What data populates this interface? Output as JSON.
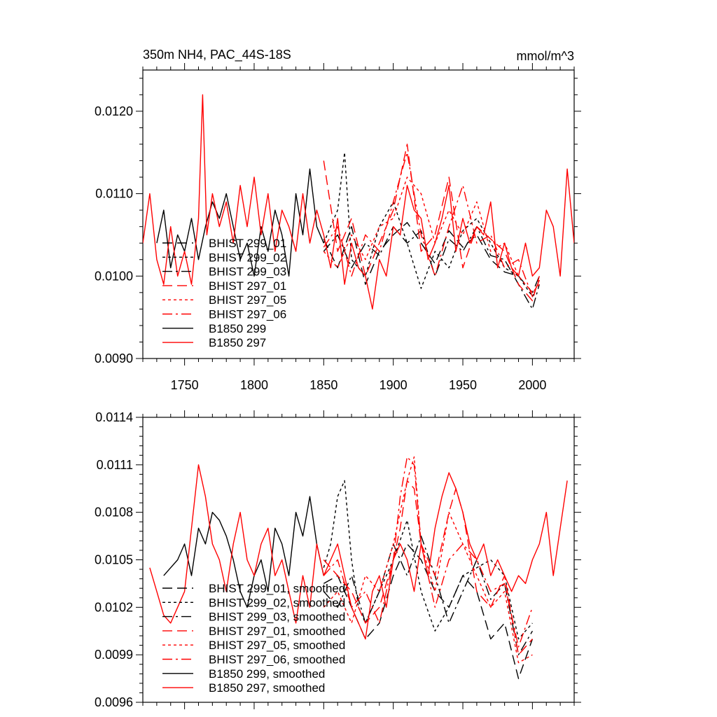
{
  "chart_data": [
    {
      "type": "line",
      "title": "350m NH4, PAC_44S-18S",
      "units": "mmol/m^3",
      "xlim": [
        1720,
        2030
      ],
      "ylim": [
        0.009,
        0.0125
      ],
      "xticks": [
        1750,
        1800,
        1850,
        1900,
        1950,
        2000
      ],
      "xtick_labels": [
        "1750",
        "1800",
        "1850",
        "1900",
        "1950",
        "2000"
      ],
      "yticks": [
        0.009,
        0.01,
        0.011,
        0.012
      ],
      "ytick_labels": [
        "0.0090",
        "0.0100",
        "0.0110",
        "0.0120"
      ],
      "legend_position": "lower-left",
      "series": [
        {
          "name": "BHIST 299_01",
          "color": "#000000",
          "dash": "14,7",
          "x": [
            1850,
            1860,
            1870,
            1880,
            1890,
            1900,
            1910,
            1920,
            1930,
            1940,
            1950,
            1960,
            1970,
            1980,
            1990,
            2000,
            2005
          ],
          "y": [
            0.01045,
            0.0101,
            0.0106,
            0.0099,
            0.0103,
            0.0105,
            0.01065,
            0.0104,
            0.01015,
            0.01055,
            0.01035,
            0.0105,
            0.0102,
            0.01005,
            0.01,
            0.0098,
            0.01
          ]
        },
        {
          "name": "BHIST 299_02",
          "color": "#000000",
          "dash": "4,4",
          "x": [
            1850,
            1860,
            1865,
            1870,
            1880,
            1890,
            1900,
            1910,
            1920,
            1930,
            1940,
            1950,
            1960,
            1970,
            1980,
            1990,
            2000,
            2005
          ],
          "y": [
            0.0104,
            0.0108,
            0.0115,
            0.0102,
            0.01,
            0.0106,
            0.0109,
            0.0104,
            0.00985,
            0.0103,
            0.0101,
            0.01055,
            0.0107,
            0.0104,
            0.0101,
            0.01,
            0.00975,
            0.00995
          ]
        },
        {
          "name": "BHIST 299_03",
          "color": "#000000",
          "dash": "14,5,3,5",
          "x": [
            1850,
            1860,
            1870,
            1880,
            1890,
            1900,
            1910,
            1920,
            1930,
            1940,
            1950,
            1960,
            1970,
            1980,
            1990,
            2000,
            2005
          ],
          "y": [
            0.0103,
            0.0105,
            0.0101,
            0.0104,
            0.01025,
            0.0106,
            0.0104,
            0.01055,
            0.01,
            0.01045,
            0.0103,
            0.0106,
            0.01025,
            0.0102,
            0.0099,
            0.0096,
            0.0099
          ]
        },
        {
          "name": "BHIST 297_01",
          "color": "#ff0000",
          "dash": "14,7",
          "x": [
            1850,
            1860,
            1870,
            1880,
            1890,
            1900,
            1910,
            1920,
            1930,
            1940,
            1950,
            1960,
            1970,
            1980,
            1990,
            2000,
            2005
          ],
          "y": [
            0.0114,
            0.0103,
            0.0107,
            0.01,
            0.0104,
            0.0108,
            0.0116,
            0.0103,
            0.0105,
            0.0112,
            0.0101,
            0.0106,
            0.01045,
            0.0103,
            0.0099,
            0.0097,
            0.01
          ]
        },
        {
          "name": "BHIST 297_05",
          "color": "#ff0000",
          "dash": "4,4",
          "x": [
            1850,
            1860,
            1870,
            1880,
            1890,
            1900,
            1910,
            1920,
            1930,
            1940,
            1950,
            1960,
            1970,
            1980,
            1990,
            2000,
            2005
          ],
          "y": [
            0.0103,
            0.0101,
            0.0105,
            0.0102,
            0.0106,
            0.0107,
            0.0112,
            0.011,
            0.0104,
            0.0108,
            0.0105,
            0.0109,
            0.0103,
            0.0104,
            0.01,
            0.0098,
            0.0099
          ]
        },
        {
          "name": "BHIST 297_06",
          "color": "#ff0000",
          "dash": "14,5,3,5",
          "x": [
            1850,
            1860,
            1870,
            1880,
            1890,
            1900,
            1910,
            1920,
            1930,
            1940,
            1950,
            1960,
            1970,
            1980,
            1990,
            2000,
            2005
          ],
          "y": [
            0.01035,
            0.0106,
            0.01,
            0.0105,
            0.0103,
            0.0109,
            0.0115,
            0.0105,
            0.01,
            0.0106,
            0.0111,
            0.0104,
            0.0105,
            0.0101,
            0.0102,
            0.00975,
            0.00995
          ]
        },
        {
          "name": "B1850 299",
          "color": "#000000",
          "dash": "",
          "x": [
            1730,
            1735,
            1740,
            1745,
            1750,
            1755,
            1760,
            1765,
            1770,
            1775,
            1780,
            1785,
            1790,
            1795,
            1800,
            1805,
            1810,
            1815,
            1820,
            1825,
            1830,
            1835,
            1840,
            1845,
            1850
          ],
          "y": [
            0.0104,
            0.0108,
            0.0101,
            0.0105,
            0.0103,
            0.0107,
            0.0102,
            0.0106,
            0.0109,
            0.0107,
            0.011,
            0.0106,
            0.0102,
            0.0104,
            0.01,
            0.0106,
            0.0103,
            0.0108,
            0.0105,
            0.01,
            0.011,
            0.0105,
            0.0113,
            0.0106,
            0.0104
          ]
        },
        {
          "name": "B1850 297",
          "color": "#ff0000",
          "dash": "",
          "x": [
            1720,
            1725,
            1730,
            1735,
            1740,
            1745,
            1750,
            1755,
            1760,
            1763,
            1766,
            1770,
            1775,
            1780,
            1785,
            1790,
            1795,
            1800,
            1805,
            1810,
            1815,
            1820,
            1825,
            1830,
            1835,
            1840,
            1845,
            1850,
            1855,
            1860,
            1865,
            1870,
            1875,
            1880,
            1885,
            1890,
            1895,
            1900,
            1905,
            1910,
            1915,
            1920,
            1925,
            1930,
            1935,
            1940,
            1945,
            1950,
            1955,
            1960,
            1965,
            1970,
            1975,
            1980,
            1985,
            1990,
            1995,
            2000,
            2005,
            2010,
            2015,
            2020,
            2025,
            2030
          ],
          "y": [
            0.0104,
            0.011,
            0.0102,
            0.0099,
            0.0106,
            0.01,
            0.0103,
            0.0099,
            0.0107,
            0.0122,
            0.0105,
            0.011,
            0.0106,
            0.0109,
            0.0104,
            0.0111,
            0.0106,
            0.0112,
            0.0105,
            0.011,
            0.0103,
            0.0108,
            0.0106,
            0.0103,
            0.011,
            0.0104,
            0.0108,
            0.0105,
            0.0101,
            0.0107,
            0.0099,
            0.0104,
            0.0101,
            0.01,
            0.0096,
            0.0102,
            0.01,
            0.0106,
            0.0105,
            0.0111,
            0.0108,
            0.0107,
            0.0102,
            0.0104,
            0.0107,
            0.0111,
            0.0103,
            0.0107,
            0.0104,
            0.0106,
            0.0105,
            0.0109,
            0.0101,
            0.0104,
            0.0101,
            0.01,
            0.0104,
            0.01,
            0.0101,
            0.0108,
            0.0106,
            0.01,
            0.0113,
            0.0104
          ]
        }
      ]
    },
    {
      "type": "line",
      "title": "",
      "xlim": [
        1720,
        2030
      ],
      "ylim": [
        0.0096,
        0.0114
      ],
      "xticks": [
        1750,
        1800,
        1850,
        1900,
        1950,
        2000
      ],
      "yticks": [
        0.0096,
        0.0099,
        0.0102,
        0.0105,
        0.0108,
        0.0111,
        0.0114
      ],
      "ytick_labels": [
        "0.0096",
        "0.0099",
        "0.0102",
        "0.0105",
        "0.0108",
        "0.0111",
        "0.0114"
      ],
      "legend_position": "lower-left",
      "series": [
        {
          "name": "BHIST 299_01, smoothed",
          "color": "#000000",
          "dash": "14,7",
          "x": [
            1850,
            1860,
            1870,
            1880,
            1890,
            1900,
            1910,
            1920,
            1930,
            1940,
            1950,
            1960,
            1970,
            1980,
            1990,
            2000
          ],
          "y": [
            0.01035,
            0.0104,
            0.0102,
            0.01,
            0.0101,
            0.0104,
            0.0106,
            0.0105,
            0.0103,
            0.0102,
            0.0104,
            0.0103,
            0.01,
            0.0101,
            0.00975,
            0.01
          ]
        },
        {
          "name": "BHIST 299_02, smoothed",
          "color": "#000000",
          "dash": "4,4",
          "x": [
            1850,
            1855,
            1860,
            1865,
            1870,
            1875,
            1880,
            1890,
            1900,
            1910,
            1920,
            1930,
            1940,
            1950,
            1960,
            1970,
            1980,
            1990,
            2000
          ],
          "y": [
            0.01045,
            0.0106,
            0.0109,
            0.011,
            0.0105,
            0.0102,
            0.0101,
            0.0103,
            0.0105,
            0.01075,
            0.0103,
            0.01005,
            0.0102,
            0.0104,
            0.01045,
            0.0105,
            0.0104,
            0.01,
            0.0101
          ]
        },
        {
          "name": "BHIST 299_03, smoothed",
          "color": "#000000",
          "dash": "14,5,3,5",
          "x": [
            1850,
            1860,
            1870,
            1880,
            1890,
            1900,
            1910,
            1920,
            1930,
            1940,
            1950,
            1960,
            1970,
            1980,
            1990,
            2000
          ],
          "y": [
            0.0103,
            0.0102,
            0.0104,
            0.0101,
            0.0103,
            0.0106,
            0.0104,
            0.01065,
            0.0104,
            0.0101,
            0.0103,
            0.0105,
            0.01025,
            0.01035,
            0.0099,
            0.01005
          ]
        },
        {
          "name": "BHIST 297_01, smoothed",
          "color": "#ff0000",
          "dash": "14,7",
          "x": [
            1850,
            1860,
            1870,
            1880,
            1890,
            1900,
            1905,
            1910,
            1915,
            1920,
            1930,
            1940,
            1945,
            1950,
            1960,
            1970,
            1980,
            1990,
            2000
          ],
          "y": [
            0.0105,
            0.0104,
            0.0103,
            0.0101,
            0.0102,
            0.0105,
            0.0107,
            0.011,
            0.01095,
            0.0106,
            0.0104,
            0.0108,
            0.01095,
            0.0108,
            0.0103,
            0.0102,
            0.0104,
            0.0099,
            0.01
          ]
        },
        {
          "name": "BHIST 297_05, smoothed",
          "color": "#ff0000",
          "dash": "4,4",
          "x": [
            1850,
            1860,
            1870,
            1880,
            1890,
            1900,
            1910,
            1915,
            1920,
            1930,
            1940,
            1950,
            1960,
            1970,
            1980,
            1990,
            2000
          ],
          "y": [
            0.0102,
            0.0103,
            0.0101,
            0.0104,
            0.0103,
            0.0106,
            0.011,
            0.01115,
            0.0106,
            0.0103,
            0.0108,
            0.0106,
            0.0104,
            0.0102,
            0.0103,
            0.00985,
            0.0099
          ]
        },
        {
          "name": "BHIST 297_06, smoothed",
          "color": "#ff0000",
          "dash": "14,5,3,5",
          "x": [
            1850,
            1860,
            1870,
            1880,
            1890,
            1900,
            1905,
            1910,
            1915,
            1920,
            1930,
            1940,
            1950,
            1960,
            1970,
            1980,
            1990,
            2000
          ],
          "y": [
            0.0104,
            0.0105,
            0.0102,
            0.0103,
            0.0101,
            0.0105,
            0.0109,
            0.01115,
            0.0111,
            0.0106,
            0.0102,
            0.0105,
            0.0106,
            0.0105,
            0.0103,
            0.01035,
            0.00995,
            0.0102
          ]
        },
        {
          "name": "B1850 299, smoothed",
          "color": "#000000",
          "dash": "",
          "x": [
            1735,
            1740,
            1745,
            1750,
            1755,
            1760,
            1765,
            1770,
            1775,
            1780,
            1785,
            1790,
            1795,
            1800,
            1805,
            1810,
            1815,
            1820,
            1825,
            1830,
            1835,
            1840,
            1845,
            1850
          ],
          "y": [
            0.0104,
            0.01045,
            0.0105,
            0.0106,
            0.0104,
            0.0107,
            0.0106,
            0.0108,
            0.01075,
            0.01065,
            0.0105,
            0.0103,
            0.0102,
            0.0104,
            0.0105,
            0.0103,
            0.0107,
            0.0106,
            0.0104,
            0.0108,
            0.01065,
            0.0109,
            0.0106,
            0.0104
          ]
        },
        {
          "name": "B1850 297, smoothed",
          "color": "#ff0000",
          "dash": "",
          "x": [
            1725,
            1730,
            1735,
            1740,
            1745,
            1750,
            1755,
            1760,
            1765,
            1770,
            1775,
            1780,
            1785,
            1790,
            1795,
            1800,
            1805,
            1810,
            1815,
            1820,
            1825,
            1830,
            1835,
            1840,
            1845,
            1850,
            1855,
            1860,
            1865,
            1870,
            1875,
            1880,
            1885,
            1890,
            1895,
            1900,
            1905,
            1910,
            1915,
            1920,
            1925,
            1930,
            1935,
            1940,
            1945,
            1950,
            1955,
            1960,
            1965,
            1970,
            1975,
            1980,
            1985,
            1990,
            1995,
            2000,
            2005,
            2010,
            2015,
            2020,
            2025
          ],
          "y": [
            0.01045,
            0.0103,
            0.01015,
            0.0101,
            0.0102,
            0.0103,
            0.0107,
            0.0111,
            0.0109,
            0.0106,
            0.0105,
            0.0103,
            0.0106,
            0.0108,
            0.0105,
            0.0104,
            0.0106,
            0.0107,
            0.0104,
            0.0105,
            0.0103,
            0.0101,
            0.0104,
            0.0102,
            0.0106,
            0.0104,
            0.0105,
            0.0106,
            0.0104,
            0.0102,
            0.0101,
            0.01,
            0.0103,
            0.0104,
            0.0102,
            0.0105,
            0.0106,
            0.0105,
            0.0103,
            0.0106,
            0.0104,
            0.0107,
            0.0109,
            0.01105,
            0.01095,
            0.0108,
            0.0106,
            0.0105,
            0.0106,
            0.0104,
            0.0105,
            0.0104,
            0.0103,
            0.0104,
            0.01035,
            0.0105,
            0.0106,
            0.0108,
            0.0104,
            0.0107,
            0.011
          ]
        }
      ]
    }
  ]
}
